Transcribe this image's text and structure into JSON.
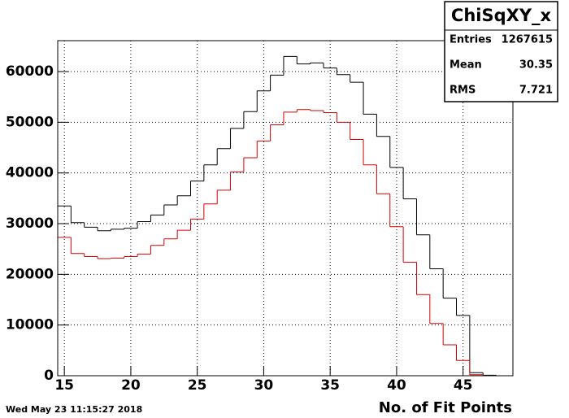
{
  "chart_data": {
    "type": "histogram",
    "x_label": "No. of Fit Points",
    "timestamp": "Wed May 23 11:15:27 2018",
    "bins": [
      14.5,
      15.5,
      16.5,
      17.5,
      18.5,
      19.5,
      20.5,
      21.5,
      22.5,
      23.5,
      24.5,
      25.5,
      26.5,
      27.5,
      28.5,
      29.5,
      30.5,
      31.5,
      32.5,
      33.5,
      34.5,
      35.5,
      36.5,
      37.5,
      38.5,
      39.5,
      40.5,
      41.5,
      42.5,
      43.5,
      44.5,
      45.5,
      46.5,
      47.5,
      48.5
    ],
    "series": [
      {
        "color": "#000000",
        "values": [
          33500,
          30200,
          29300,
          28600,
          28900,
          29100,
          30400,
          31700,
          33700,
          35500,
          38400,
          41600,
          44800,
          48800,
          52100,
          56200,
          59300,
          63000,
          61500,
          61700,
          60700,
          59400,
          57900,
          51600,
          47200,
          41100,
          34900,
          27800,
          21100,
          15300,
          11900,
          600,
          100,
          0
        ]
      },
      {
        "color": "#d40000",
        "values": [
          27300,
          24100,
          23500,
          23100,
          23200,
          23500,
          24000,
          25700,
          27000,
          28700,
          30900,
          33900,
          36600,
          40200,
          43000,
          46300,
          49500,
          52000,
          52500,
          52300,
          51900,
          50000,
          46600,
          41600,
          35900,
          29400,
          22400,
          16000,
          10300,
          6100,
          3000,
          200,
          0,
          0
        ]
      }
    ],
    "xlim": [
      14.5,
      48.75
    ],
    "xticks": [
      15,
      20,
      25,
      30,
      35,
      40,
      45
    ],
    "ylim": [
      0,
      66100
    ],
    "yticks": [
      0,
      10000,
      20000,
      30000,
      40000,
      50000,
      60000
    ],
    "grid": true,
    "stats": {
      "title": "ChiSqXY_x",
      "rows": [
        {
          "label": "Entries",
          "value": 1267615
        },
        {
          "label": "Mean",
          "value": 30.35
        },
        {
          "label": "RMS",
          "value": 7.721
        }
      ]
    }
  }
}
